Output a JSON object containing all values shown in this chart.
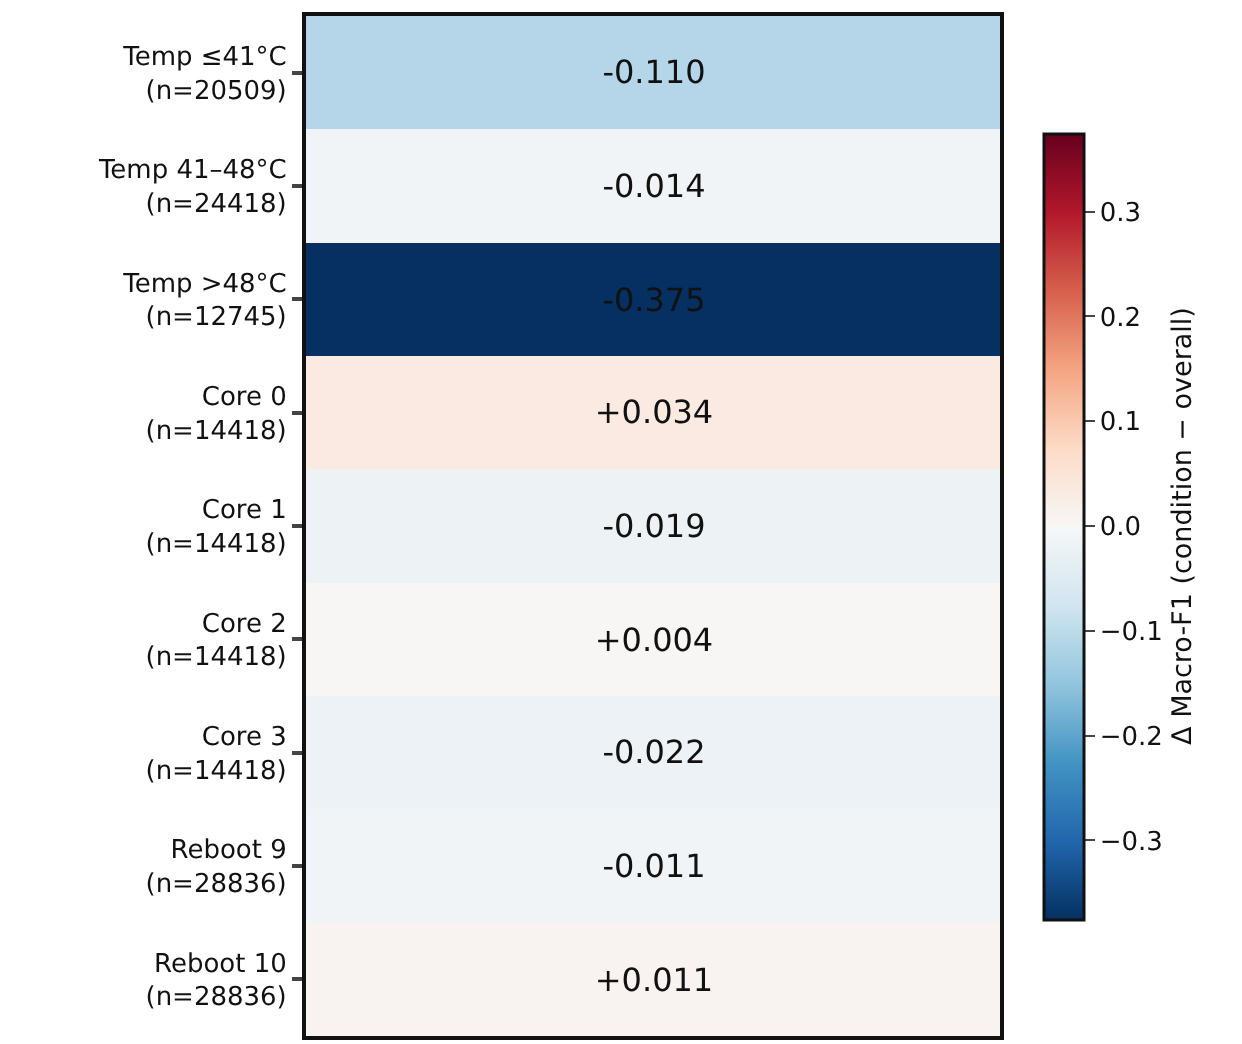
{
  "chart_data": {
    "type": "heatmap",
    "categories": [
      null
    ],
    "y_categories": [
      "Temp ≤41°C\n(n=20509)",
      "Temp 41–48°C\n(n=24418)",
      "Temp >48°C\n(n=12745)",
      "Core 0\n(n=14418)",
      "Core 1\n(n=14418)",
      "Core 2\n(n=14418)",
      "Core 3\n(n=14418)",
      "Reboot 9\n(n=28836)",
      "Reboot 10\n(n=28836)"
    ],
    "cells": [
      [
        -0.11
      ],
      [
        -0.014
      ],
      [
        -0.375
      ],
      [
        0.034
      ],
      [
        -0.019
      ],
      [
        0.004
      ],
      [
        -0.022
      ],
      [
        -0.011
      ],
      [
        0.011
      ]
    ],
    "cell_labels": [
      [
        "-0.110"
      ],
      [
        "-0.014"
      ],
      [
        "-0.375"
      ],
      [
        "+0.034"
      ],
      [
        "-0.019"
      ],
      [
        "+0.004"
      ],
      [
        "-0.022"
      ],
      [
        "-0.011"
      ],
      [
        "+0.011"
      ]
    ],
    "clim": [
      -0.375,
      0.375
    ],
    "cticks": [
      {
        "value": -0.3,
        "label": "−0.3"
      },
      {
        "value": -0.2,
        "label": "−0.2"
      },
      {
        "value": -0.1,
        "label": "−0.1"
      },
      {
        "value": 0,
        "label": "0.0"
      },
      {
        "value": 0.1,
        "label": "0.1"
      },
      {
        "value": 0.2,
        "label": "0.2"
      },
      {
        "value": 0.3,
        "label": "0.3"
      }
    ],
    "clabel": "Δ Macro-F1 (condition − overall)"
  }
}
